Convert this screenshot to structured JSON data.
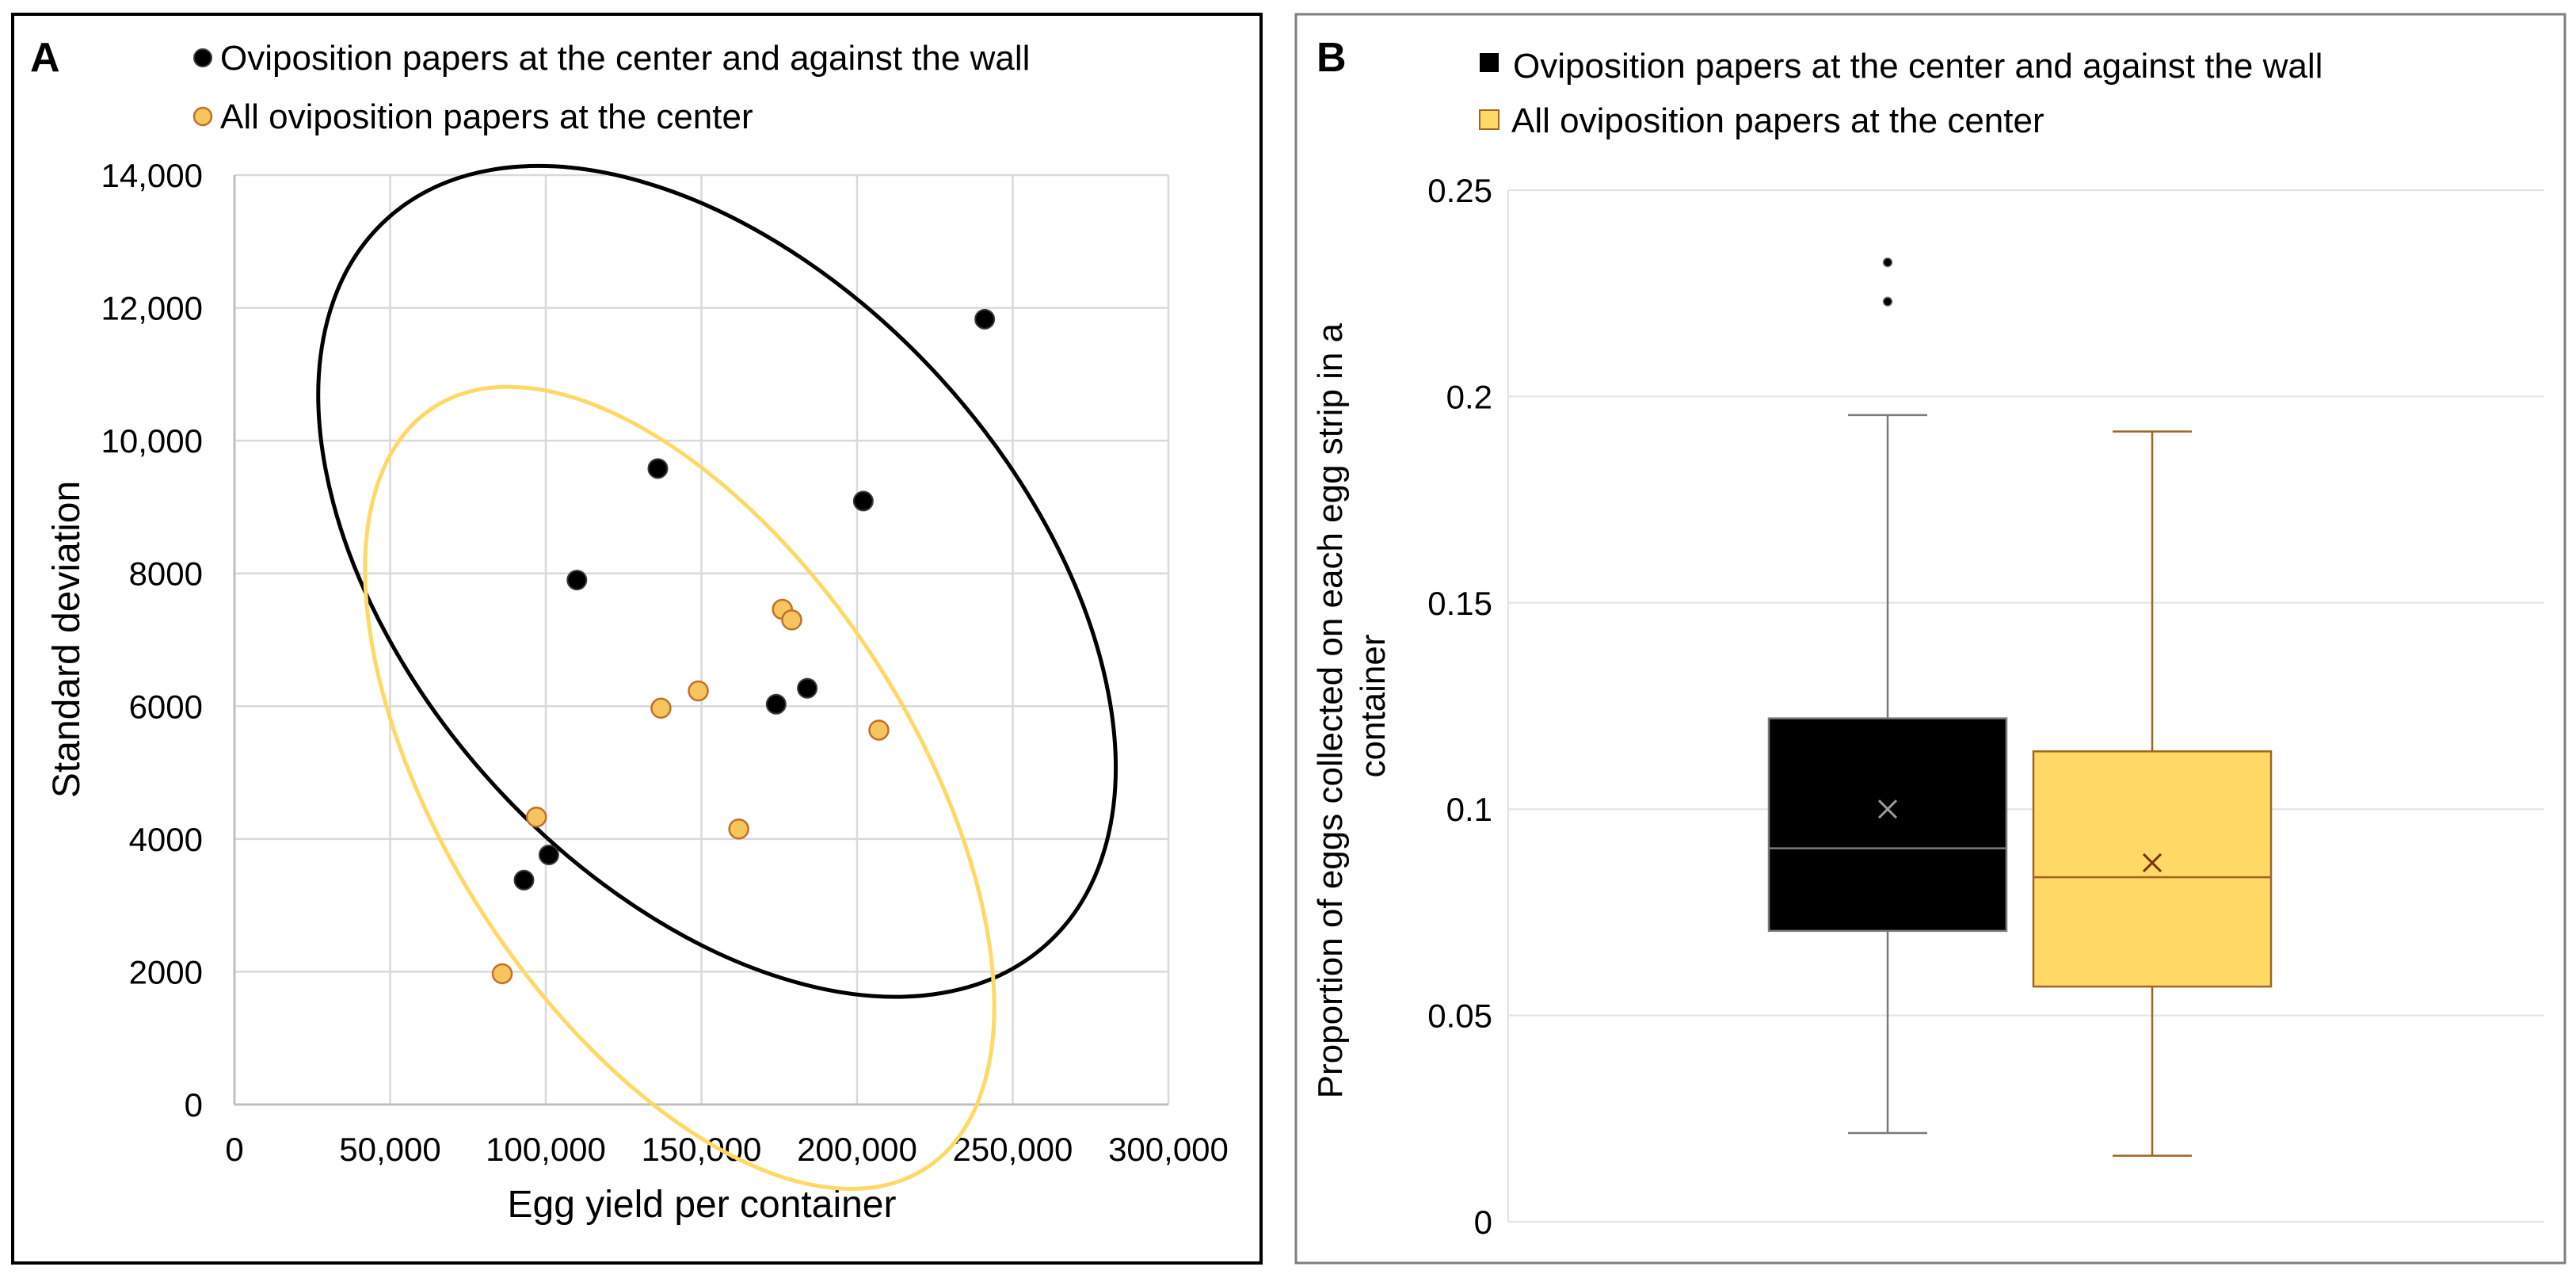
{
  "chart_data": [
    {
      "type": "scatter",
      "panel_label": "A",
      "xlabel": "Egg yield per container",
      "ylabel": "Standard deviation",
      "xlim": [
        0,
        300000
      ],
      "ylim": [
        0,
        14000
      ],
      "x_ticks": [
        0,
        50000,
        100000,
        150000,
        200000,
        250000,
        300000
      ],
      "x_tick_labels": [
        "0",
        "50,000",
        "100,000",
        "150,000",
        "200,000",
        "250,000",
        "300,000"
      ],
      "y_ticks": [
        0,
        2000,
        4000,
        6000,
        8000,
        10000,
        12000,
        14000
      ],
      "y_tick_labels": [
        "0",
        "2000",
        "4000",
        "6000",
        "8000",
        "10,000",
        "12,000",
        "14,000"
      ],
      "grid": true,
      "legend_position": "top",
      "series": [
        {
          "name": "Oviposition papers at the center and against the wall",
          "color": "#000000",
          "edge_color": "#3a3a3a",
          "points": [
            {
              "x": 93000,
              "y": 3380
            },
            {
              "x": 101000,
              "y": 3760
            },
            {
              "x": 110000,
              "y": 7900
            },
            {
              "x": 136000,
              "y": 9580
            },
            {
              "x": 174000,
              "y": 6030
            },
            {
              "x": 184000,
              "y": 6270
            },
            {
              "x": 202000,
              "y": 9090
            },
            {
              "x": 241000,
              "y": 11830
            }
          ],
          "ellipse": {
            "cx": 155000,
            "cy": 7880,
            "rx": 97000,
            "ry": 2110,
            "angle_deg": 42.4
          }
        },
        {
          "name": "All oviposition papers at the center",
          "color": "#f7c55e",
          "edge_color": "#c0702a",
          "points": [
            {
              "x": 86000,
              "y": 1970
            },
            {
              "x": 97000,
              "y": 4330
            },
            {
              "x": 137000,
              "y": 5970
            },
            {
              "x": 149000,
              "y": 6230
            },
            {
              "x": 162000,
              "y": 4150
            },
            {
              "x": 176000,
              "y": 7460
            },
            {
              "x": 179000,
              "y": 7300
            },
            {
              "x": 207000,
              "y": 5640
            }
          ],
          "ellipse": {
            "cx": 143000,
            "cy": 4770,
            "rx": 75000,
            "ry": 1950,
            "angle_deg": 32.9
          }
        }
      ]
    },
    {
      "type": "box",
      "panel_label": "B",
      "ylabel": "Proportion of eggs collected on each egg strip in a container",
      "ylim": [
        0,
        0.25
      ],
      "y_ticks": [
        0,
        0.05,
        0.1,
        0.15,
        0.2,
        0.25
      ],
      "y_tick_labels": [
        "0",
        "0.05",
        "0.1",
        "0.15",
        "0.2",
        "0.25"
      ],
      "grid": true,
      "legend_position": "top",
      "series": [
        {
          "name": "Oviposition papers at the center and against the wall",
          "fill": "#000000",
          "line_color": "#7a7a7a",
          "mean_color": "#9a9a9a",
          "whisker_low": 0.0215,
          "q1": 0.0705,
          "median": 0.0905,
          "q3": 0.122,
          "whisker_high": 0.1955,
          "mean": 0.1,
          "outliers": [
            0.223,
            0.2325
          ]
        },
        {
          "name": "All oviposition papers at the center",
          "fill": "#ffd966",
          "line_color": "#a0651e",
          "mean_color": "#7a3010",
          "whisker_low": 0.016,
          "q1": 0.057,
          "median": 0.0835,
          "q3": 0.114,
          "whisker_high": 0.1915,
          "mean": 0.087,
          "outliers": []
        }
      ]
    }
  ]
}
